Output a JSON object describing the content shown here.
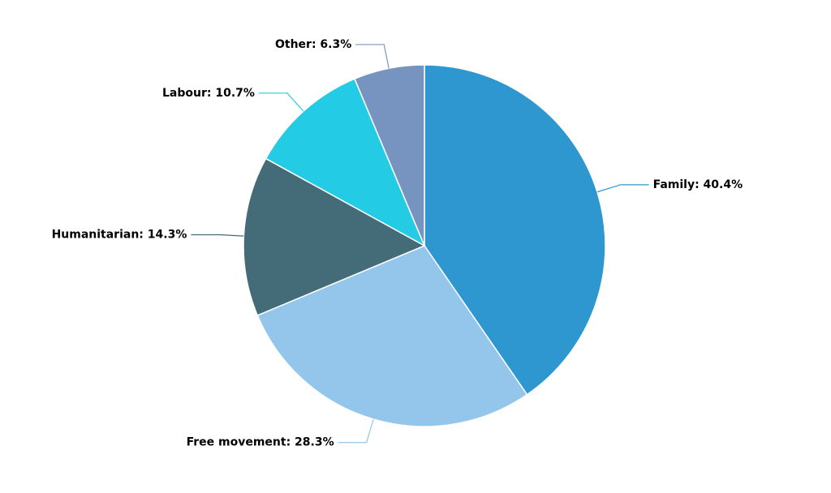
{
  "chart_data": {
    "type": "pie",
    "values": [
      40.4,
      28.3,
      14.3,
      10.7,
      6.3
    ],
    "value_labels": [
      "Family: 40.4%",
      "Free movement: 28.3%",
      "Humanitarian: 14.3%",
      "Labour: 10.7%",
      "Other: 6.3%"
    ],
    "colors": [
      "#2e97d0",
      "#93c6ea",
      "#446c78",
      "#24cbe5",
      "#7794c0"
    ]
  }
}
